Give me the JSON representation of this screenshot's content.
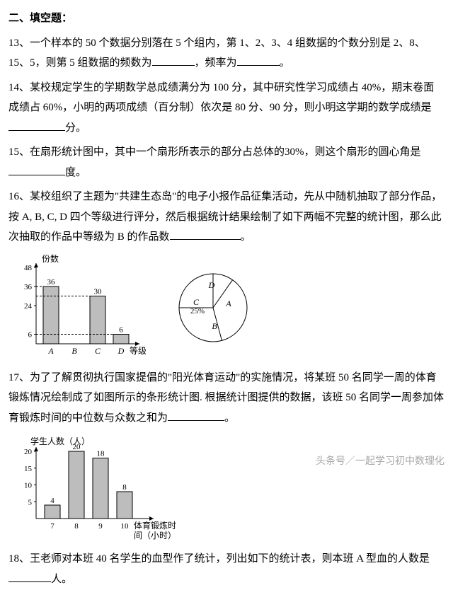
{
  "title": "二、填空题：",
  "q13": "13、一个样本的 50 个数据分别落在 5 个组内，第 1、2、3、4 组数据的个数分别是 2、8、15、5，则第 5 组数据的频数为",
  "q13b": "，频率为",
  "q13c": "。",
  "q14": "14、某校规定学生的学期数学总成绩满分为 100 分，其中研究性学习成绩占 40%，期末卷面成绩占 60%，小明的两项成绩（百分制）依次是 80 分、90 分，则小明这学期的数学成绩是",
  "q14b": "分。",
  "q15": "15、在扇形统计图中，其中一个扇形所表示的部分占总体的30%，则这个扇形的圆心角是",
  "q15b": "度。",
  "q16": "16、某校组织了主题为\"共建生态岛\"的电子小报作品征集活动，先从中随机抽取了部分作品，按 A, B, C, D 四个等级进行评分，然后根据统计结果绘制了如下两幅不完整的统计图，那么此次抽取的作品中等级为 B 的作品数",
  "q16b": "。",
  "bar1": {
    "ylabel": "份数",
    "xlabel": "等级",
    "cats": [
      "A",
      "B",
      "C",
      "D"
    ],
    "vals": [
      36,
      null,
      30,
      6
    ],
    "labels": [
      "36",
      "",
      "30",
      "6"
    ],
    "yticks": [
      6,
      24,
      36,
      48
    ],
    "bar_color": "#bdbdbd",
    "axis_color": "#000"
  },
  "pie1": {
    "labels": [
      "A",
      "B",
      "C",
      "D"
    ],
    "c_label": "25%",
    "stroke": "#000",
    "fill": "#fff"
  },
  "q17": "17、为了了解贯彻执行国家提倡的\"阳光体育运动\"的实施情况，将某班 50 名同学一周的体育锻炼情况绘制成了如图所示的条形统计图. 根据统计图提供的数据，该班 50 名同学一周参加体育锻炼时间的中位数与众数之和为",
  "q17b": "。",
  "bar2": {
    "ylabel": "学生人数（人）",
    "xlabel1": "体育锻炼时",
    "xlabel2": "间（小时）",
    "cats": [
      "7",
      "8",
      "9",
      "10"
    ],
    "vals": [
      4,
      20,
      18,
      8
    ],
    "yticks": [
      5,
      10,
      15,
      20
    ],
    "bar_color": "#bdbdbd",
    "axis_color": "#000"
  },
  "q18": "18、王老师对本班 40 名学生的血型作了统计，列出如下的统计表，则本班 A 型血的人数是",
  "q18b": "人。",
  "watermark": "头条号／一起学习初中数理化"
}
